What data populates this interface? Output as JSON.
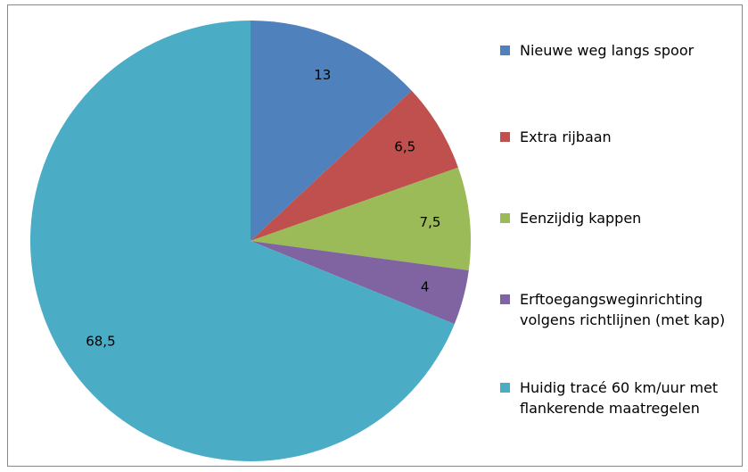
{
  "chart_data": {
    "type": "pie",
    "categories": [
      "Nieuwe weg langs spoor",
      "Extra rijbaan",
      "Eenzijdig kappen",
      "Erftoegangsweginrichting volgens richtlijnen (met kap)",
      "Huidig tracé 60 km/uur met flankerende maatregelen"
    ],
    "values": [
      13,
      6.5,
      7.5,
      4,
      68.5
    ],
    "value_labels": [
      "13",
      "6,5",
      "7,5",
      "4",
      "68,5"
    ],
    "colors": [
      "#4f81bd",
      "#c0504d",
      "#9bbb59",
      "#8064a2",
      "#4bacc6"
    ],
    "legend": "right"
  }
}
